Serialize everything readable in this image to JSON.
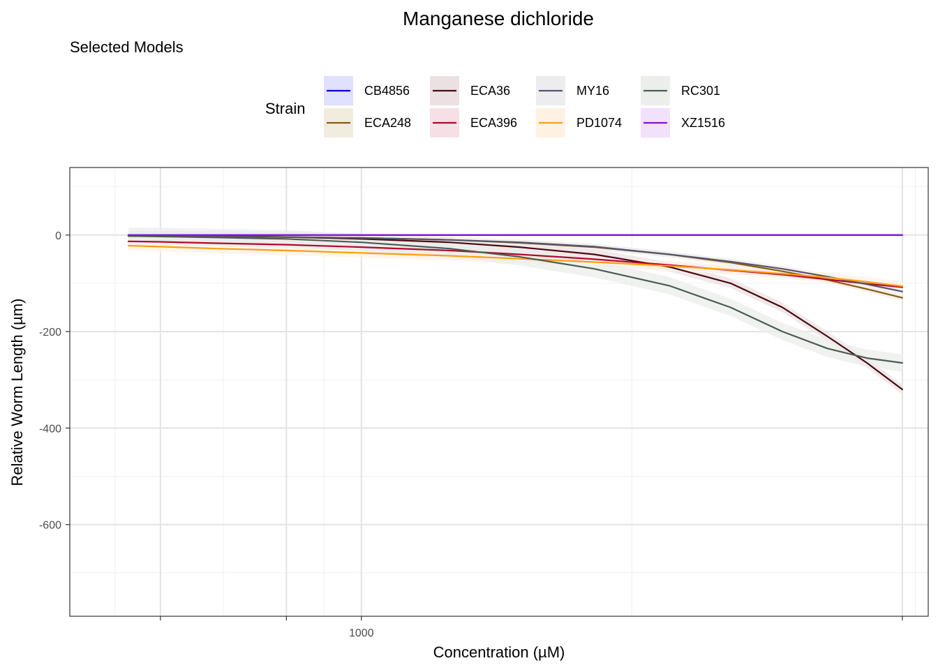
{
  "chart_data": {
    "type": "line",
    "title": "Manganese dichloride",
    "subtitle": "Selected Models",
    "xlabel": "Concentration (µM)",
    "ylabel": "Relative Worm Length (µm)",
    "x_scale": "log10",
    "xlim": [
      420,
      5400
    ],
    "ylim": [
      -790,
      140
    ],
    "x_ticks": [
      {
        "value": 1000,
        "label": "1000"
      }
    ],
    "x_tick_marks": [
      550,
      800,
      5000
    ],
    "y_ticks": [
      {
        "value": 0,
        "label": "0"
      },
      {
        "value": -200,
        "label": "-200"
      },
      {
        "value": -400,
        "label": "-400"
      },
      {
        "value": -600,
        "label": "-600"
      }
    ],
    "legend": {
      "title": "Strain",
      "position": "top",
      "columns": 4
    },
    "x": [
      500,
      550,
      650,
      800,
      1000,
      1300,
      1600,
      2000,
      2500,
      3000,
      3500,
      4000,
      4500,
      5000
    ],
    "series": [
      {
        "name": "CB4856",
        "color": "#0000E0",
        "band": "#E0E0FF",
        "values": [
          0,
          0,
          0,
          0,
          0,
          0,
          0,
          0,
          0,
          0,
          0,
          0,
          0,
          0
        ],
        "band_width": 2
      },
      {
        "name": "ECA248",
        "color": "#8B5A12",
        "band": "#F2ECDF",
        "values": [
          -2,
          -2,
          -3,
          -4,
          -6,
          -10,
          -16,
          -25,
          -40,
          -57,
          -75,
          -93,
          -112,
          -130
        ],
        "band_width": 6
      },
      {
        "name": "ECA36",
        "color": "#4A0A12",
        "band": "#EBE1E2",
        "values": [
          -1,
          -1,
          -2,
          -4,
          -8,
          -15,
          -25,
          -40,
          -66,
          -100,
          -150,
          -210,
          -265,
          -320
        ],
        "band_width": 10
      },
      {
        "name": "ECA396",
        "color": "#B0082E",
        "band": "#F6E0E5",
        "values": [
          -13,
          -14,
          -17,
          -20,
          -25,
          -32,
          -40,
          -50,
          -62,
          -73,
          -82,
          -92,
          -101,
          -108
        ],
        "band_width": 6
      },
      {
        "name": "MY16",
        "color": "#55546E",
        "band": "#EDEDF0",
        "values": [
          -2,
          -2,
          -3,
          -4,
          -6,
          -10,
          -15,
          -24,
          -40,
          -55,
          -70,
          -86,
          -102,
          -117
        ],
        "band_width": 6
      },
      {
        "name": "PD1074",
        "color": "#FF9E10",
        "band": "#FFF2E3",
        "values": [
          -22,
          -24,
          -28,
          -32,
          -37,
          -43,
          -49,
          -56,
          -64,
          -72,
          -80,
          -88,
          -97,
          -106
        ],
        "band_width": 10
      },
      {
        "name": "RC301",
        "color": "#4D5C52",
        "band": "#EBEEEB",
        "values": [
          -2,
          -3,
          -5,
          -8,
          -15,
          -28,
          -45,
          -70,
          -105,
          -150,
          -200,
          -235,
          -255,
          -265
        ],
        "band_width": 18
      },
      {
        "name": "XZ1516",
        "color": "#8A10D8",
        "band": "#F1E1FB",
        "values": [
          0,
          0,
          0,
          0,
          0,
          0,
          0,
          0,
          0,
          0,
          0,
          0,
          0,
          0
        ],
        "band_width": 2
      }
    ]
  }
}
